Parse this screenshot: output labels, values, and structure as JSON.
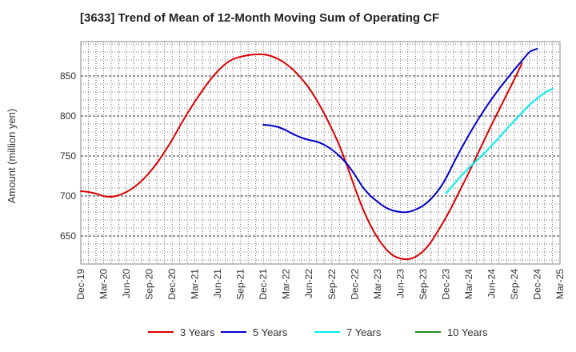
{
  "chart_data": {
    "type": "line",
    "title": "[3633]  Trend of Mean of 12-Month Moving Sum of Operating CF",
    "xlabel": "",
    "ylabel": "Amount (million yen)",
    "ylim": [
      615,
      893
    ],
    "yticks": [
      650,
      700,
      750,
      800,
      850
    ],
    "xlim": [
      "2019-12",
      "2025-03"
    ],
    "xticks": [
      "Dec-19",
      "Mar-20",
      "Jun-20",
      "Sep-20",
      "Dec-20",
      "Mar-21",
      "Jun-21",
      "Sep-21",
      "Dec-21",
      "Mar-22",
      "Jun-22",
      "Sep-22",
      "Dec-22",
      "Mar-23",
      "Jun-23",
      "Sep-23",
      "Dec-23",
      "Mar-24",
      "Jun-24",
      "Sep-24",
      "Dec-24",
      "Mar-25"
    ],
    "grid": true,
    "legend_position": "bottom",
    "series": [
      {
        "name": "3 Years",
        "color": "#dd0000",
        "start_index": 0,
        "values": [
          706,
          705,
          703,
          700,
          699,
          701,
          705,
          711,
          719,
          729,
          741,
          755,
          770,
          787,
          803,
          818,
          832,
          845,
          856,
          865,
          871,
          874,
          876,
          877,
          877,
          875,
          871,
          865,
          857,
          847,
          835,
          820,
          803,
          784,
          763,
          738,
          711,
          686,
          665,
          648,
          635,
          626,
          622,
          621,
          624,
          631,
          642,
          657,
          673,
          691,
          710,
          729,
          749,
          769,
          789,
          808,
          827,
          846,
          866
        ]
      },
      {
        "name": "5 Years",
        "color": "#0000cc",
        "start_index": 24,
        "values": [
          789,
          788,
          786,
          782,
          777,
          773,
          770,
          768,
          764,
          758,
          750,
          740,
          727,
          712,
          701,
          693,
          686,
          682,
          680,
          680,
          683,
          688,
          696,
          707,
          722,
          741,
          759,
          776,
          792,
          807,
          821,
          834,
          846,
          858,
          869,
          880,
          884
        ]
      },
      {
        "name": "7 Years",
        "color": "#00eeee",
        "start_index": 48,
        "values": [
          703,
          714,
          725,
          735,
          744,
          753,
          763,
          773,
          784,
          794,
          804,
          814,
          822,
          829,
          834
        ]
      },
      {
        "name": "10 Years",
        "color": "#228b22",
        "start_index": 0,
        "values": []
      }
    ]
  }
}
